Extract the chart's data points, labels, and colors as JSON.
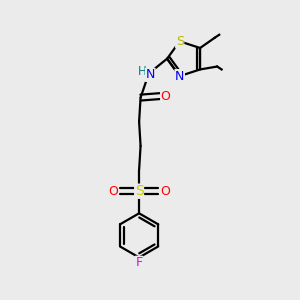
{
  "background_color": "#ebebeb",
  "bond_color": "#000000",
  "atom_colors": {
    "S_thiazole": "#b8b800",
    "N": "#0000ee",
    "H": "#008080",
    "O": "#ff0000",
    "S_sulfonyl": "#cccc00",
    "F": "#ee00ee",
    "C": "#000000"
  },
  "figsize": [
    3.0,
    3.0
  ],
  "dpi": 100
}
